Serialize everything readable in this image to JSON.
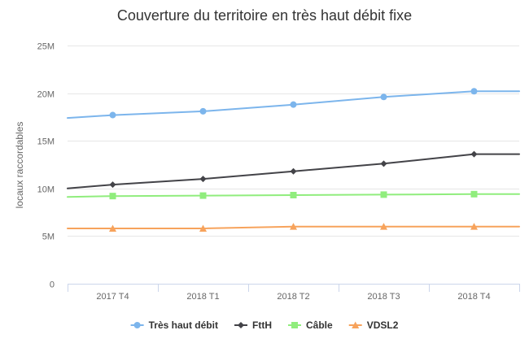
{
  "chart_data": {
    "type": "line",
    "title": "Couverture du territoire en très haut débit fixe",
    "ylabel": "locaux raccordables",
    "xlabel": "",
    "categories": [
      "2017 T4",
      "2018 T1",
      "2018 T2",
      "2018 T3",
      "2018 T4"
    ],
    "ylim": [
      0,
      25
    ],
    "yticks": [
      0,
      5,
      10,
      15,
      20,
      25
    ],
    "ytick_labels": [
      "0",
      "5M",
      "10M",
      "15M",
      "20M",
      "25M"
    ],
    "grid": true,
    "legend": "bottom",
    "series": [
      {
        "name": "Très haut débit",
        "color": "#7cb5ec",
        "marker": "circle",
        "values": [
          17.7,
          18.1,
          18.8,
          19.6,
          20.2
        ],
        "edge_values": [
          17.4,
          20.2
        ]
      },
      {
        "name": "FttH",
        "color": "#434348",
        "marker": "diamond",
        "values": [
          10.4,
          11.0,
          11.8,
          12.6,
          13.6
        ],
        "edge_values": [
          10.0,
          13.6
        ]
      },
      {
        "name": "Câble",
        "color": "#90ed7d",
        "marker": "square",
        "values": [
          9.2,
          9.25,
          9.3,
          9.35,
          9.4
        ],
        "edge_values": [
          9.1,
          9.4
        ]
      },
      {
        "name": "VDSL2",
        "color": "#f7a35c",
        "marker": "triangle",
        "values": [
          5.8,
          5.8,
          6.0,
          6.0,
          6.0
        ],
        "edge_values": [
          5.8,
          6.0
        ]
      }
    ]
  }
}
